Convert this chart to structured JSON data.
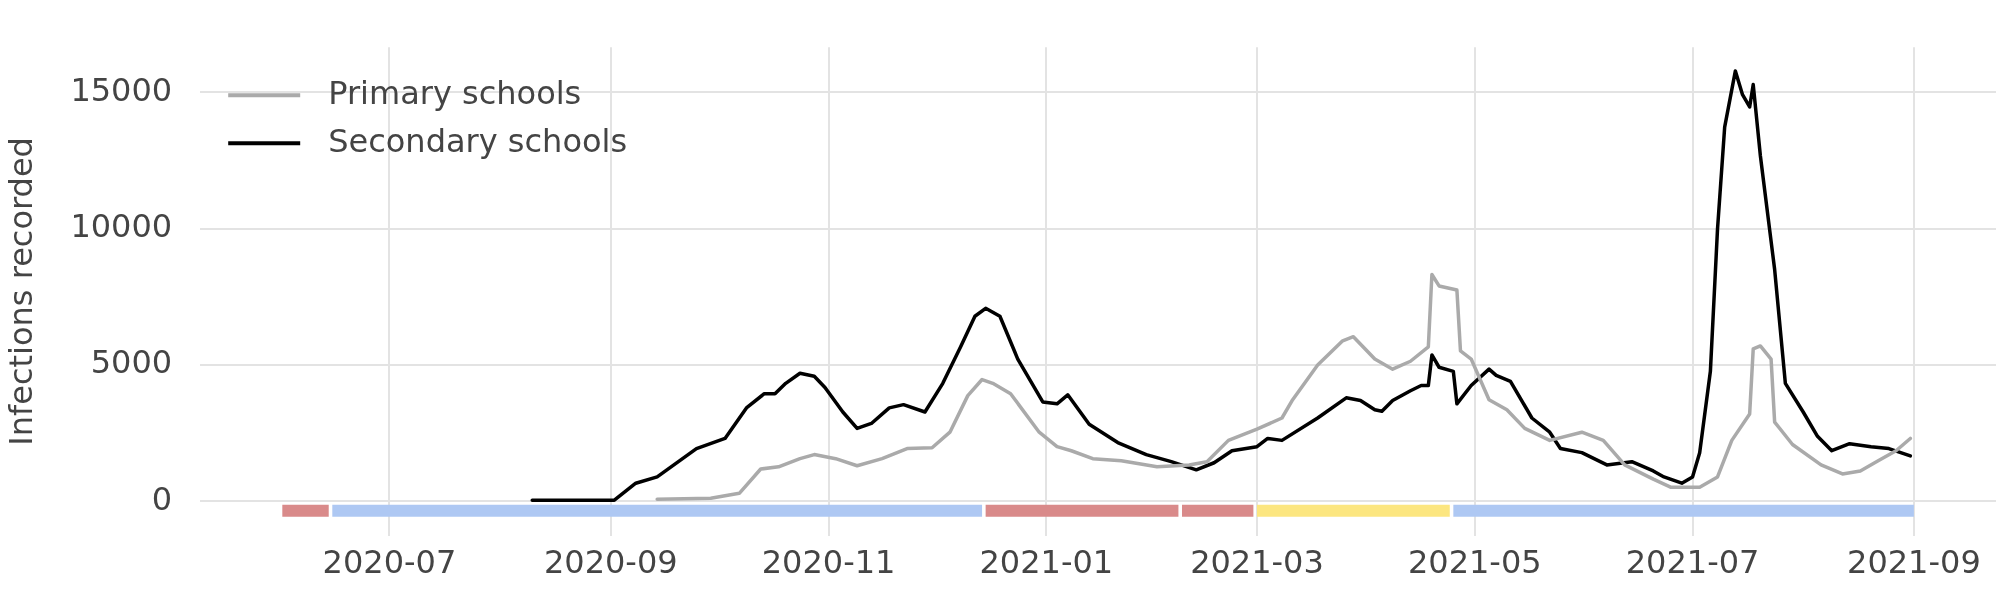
{
  "chart_data": {
    "type": "line",
    "ylabel": "Infections recorded",
    "xlim": [
      "2020-05-09",
      "2021-09-24"
    ],
    "xticks": [
      "2020-07",
      "2020-09",
      "2020-11",
      "2021-01",
      "2021-03",
      "2021-05",
      "2021-07",
      "2021-09"
    ],
    "ylim": [
      -1250,
      16650
    ],
    "yticks": [
      0,
      5000,
      10000,
      15000
    ],
    "grid": true,
    "legend": "top left",
    "series": [
      {
        "name": "Primary schools",
        "color": "#aaaaaa",
        "x": [
          "2020-09-14",
          "2020-09-29",
          "2020-10-07",
          "2020-10-13",
          "2020-10-18",
          "2020-10-24",
          "2020-10-28",
          "2020-11-03",
          "2020-11-09",
          "2020-11-16",
          "2020-11-23",
          "2020-11-30",
          "2020-12-05",
          "2020-12-10",
          "2020-12-14",
          "2020-12-17",
          "2020-12-22",
          "2020-12-30",
          "2021-01-04",
          "2021-01-08",
          "2021-01-14",
          "2021-01-22",
          "2021-02-01",
          "2021-02-10",
          "2021-02-15",
          "2021-02-21",
          "2021-03-01",
          "2021-03-08",
          "2021-03-11",
          "2021-03-18",
          "2021-03-25",
          "2021-03-28",
          "2021-04-03",
          "2021-04-08",
          "2021-04-13",
          "2021-04-18",
          "2021-04-19",
          "2021-04-21",
          "2021-04-26",
          "2021-04-27",
          "2021-04-30",
          "2021-05-05",
          "2021-05-10",
          "2021-05-15",
          "2021-05-22",
          "2021-05-31",
          "2021-06-06",
          "2021-06-12",
          "2021-06-20",
          "2021-06-25",
          "2021-07-03",
          "2021-07-08",
          "2021-07-12",
          "2021-07-17",
          "2021-07-18",
          "2021-07-20",
          "2021-07-23",
          "2021-07-24",
          "2021-07-29",
          "2021-08-06",
          "2021-08-12",
          "2021-08-17",
          "2021-08-22",
          "2021-08-27",
          "2021-08-31"
        ],
        "values": [
          80,
          120,
          300,
          1190,
          1270,
          1570,
          1720,
          1570,
          1310,
          1570,
          1940,
          1970,
          2540,
          3880,
          4470,
          4330,
          3950,
          2540,
          2010,
          1860,
          1570,
          1490,
          1270,
          1340,
          1460,
          2240,
          2650,
          3060,
          3730,
          5000,
          5890,
          6040,
          5220,
          4850,
          5140,
          5670,
          8320,
          7900,
          7750,
          5520,
          5220,
          3730,
          3360,
          2680,
          2240,
          2540,
          2240,
          1340,
          820,
          520,
          520,
          900,
          2240,
          3210,
          5590,
          5700,
          5220,
          2910,
          2090,
          1340,
          1010,
          1120,
          1490,
          1860,
          2310
        ]
      },
      {
        "name": "Secondary schools",
        "color": "#000000",
        "x": [
          "2020-08-10",
          "2020-09-02",
          "2020-09-08",
          "2020-09-14",
          "2020-09-25",
          "2020-10-03",
          "2020-10-09",
          "2020-10-14",
          "2020-10-17",
          "2020-10-20",
          "2020-10-24",
          "2020-10-28",
          "2020-10-31",
          "2020-11-05",
          "2020-11-09",
          "2020-11-13",
          "2020-11-18",
          "2020-11-22",
          "2020-11-28",
          "2020-12-03",
          "2020-12-08",
          "2020-12-12",
          "2020-12-15",
          "2020-12-19",
          "2020-12-24",
          "2020-12-31",
          "2021-01-04",
          "2021-01-07",
          "2021-01-13",
          "2021-01-21",
          "2021-01-29",
          "2021-02-05",
          "2021-02-12",
          "2021-02-17",
          "2021-02-22",
          "2021-03-01",
          "2021-03-04",
          "2021-03-08",
          "2021-03-18",
          "2021-03-26",
          "2021-03-30",
          "2021-04-03",
          "2021-04-05",
          "2021-04-08",
          "2021-04-13",
          "2021-04-16",
          "2021-04-18",
          "2021-04-19",
          "2021-04-21",
          "2021-04-25",
          "2021-04-26",
          "2021-04-30",
          "2021-05-05",
          "2021-05-07",
          "2021-05-11",
          "2021-05-17",
          "2021-05-22",
          "2021-05-25",
          "2021-05-31",
          "2021-06-07",
          "2021-06-14",
          "2021-06-20",
          "2021-06-23",
          "2021-06-28",
          "2021-07-01",
          "2021-07-03",
          "2021-07-06",
          "2021-07-08",
          "2021-07-10",
          "2021-07-13",
          "2021-07-15",
          "2021-07-17",
          "2021-07-18",
          "2021-07-20",
          "2021-07-24",
          "2021-07-27",
          "2021-08-01",
          "2021-08-05",
          "2021-08-09",
          "2021-08-14",
          "2021-08-20",
          "2021-08-25",
          "2021-08-31"
        ],
        "values": [
          50,
          50,
          670,
          900,
          1940,
          2310,
          3430,
          3950,
          3950,
          4330,
          4700,
          4590,
          4180,
          3280,
          2680,
          2860,
          3430,
          3550,
          3280,
          4330,
          5670,
          6790,
          7080,
          6790,
          5220,
          3650,
          3580,
          3910,
          2830,
          2160,
          1720,
          1460,
          1160,
          1420,
          1860,
          2010,
          2310,
          2240,
          3060,
          3800,
          3700,
          3360,
          3310,
          3700,
          4060,
          4250,
          4250,
          5370,
          4920,
          4770,
          3580,
          4250,
          4850,
          4620,
          4400,
          3060,
          2540,
          1940,
          1790,
          1340,
          1460,
          1120,
          900,
          670,
          900,
          1790,
          4770,
          9990,
          13720,
          15780,
          14910,
          14460,
          15280,
          12670,
          8500,
          4330,
          3280,
          2390,
          1860,
          2120,
          2010,
          1940,
          1670
        ]
      },
      {
        "color": "#d98a8a",
        "x": [
          "2020-06-01",
          "2020-06-14"
        ],
        "values": [
          -340,
          -340
        ]
      },
      {
        "color": "#aec8f3",
        "x": [
          "2020-06-15",
          "2020-12-14"
        ],
        "values": [
          -340,
          -340
        ]
      },
      {
        "color": "#d98a8a",
        "x": [
          "2020-12-15",
          "2021-02-07"
        ],
        "values": [
          -340,
          -340
        ]
      },
      {
        "color": "#d98a8a",
        "x": [
          "2021-02-08",
          "2021-02-28"
        ],
        "values": [
          -340,
          -340
        ]
      },
      {
        "color": "#fce680",
        "x": [
          "2021-03-01",
          "2021-04-24"
        ],
        "values": [
          -340,
          -340
        ]
      },
      {
        "color": "#aec8f3",
        "x": [
          "2021-04-25",
          "2021-09-01"
        ],
        "values": [
          -340,
          -340
        ]
      }
    ]
  }
}
